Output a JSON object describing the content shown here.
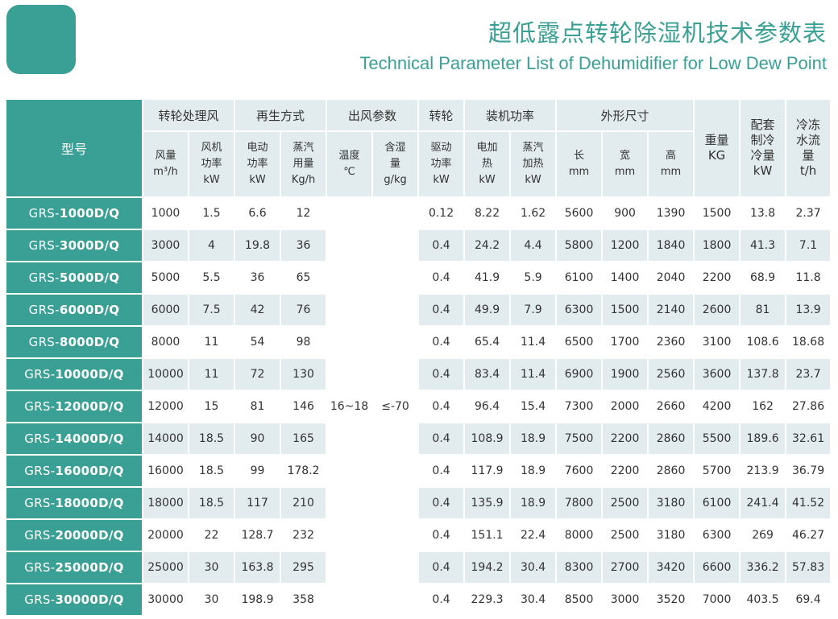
{
  "header": {
    "title_cn": "超低露点转轮除湿机技术参数表",
    "title_en": "Technical Parameter List of Dehumidifier for Low Dew Point"
  },
  "table": {
    "model_label": "型号",
    "groups": {
      "rotor_air": "转轮处理风",
      "regen": "再生方式",
      "outlet": "出风参数",
      "rotor": "转轮",
      "power": "装机功率",
      "dims": "外形尺寸",
      "weight_1": "重量",
      "weight_2": "KG",
      "cooling_1": "配套",
      "cooling_2": "制冷",
      "cooling_3": "冷量",
      "cooling_4": "kW",
      "chilled_1": "冷冻",
      "chilled_2": "水流",
      "chilled_3": "量",
      "chilled_4": "t/h"
    },
    "subheaders": {
      "air_volume": [
        "风量",
        "m³/h"
      ],
      "fan_power": [
        "风机",
        "功率",
        "kW"
      ],
      "electric_power": [
        "电动",
        "功率",
        "kW"
      ],
      "steam_usage": [
        "蒸汽",
        "用量",
        "Kg/h"
      ],
      "temperature": [
        "温度",
        "℃"
      ],
      "moisture": [
        "含湿",
        "量",
        "g/kg"
      ],
      "drive_power": [
        "驱动",
        "功率",
        "kW"
      ],
      "electric_heat": [
        "电加",
        "热",
        "kW"
      ],
      "steam_heat": [
        "蒸汽",
        "加热",
        "kW"
      ],
      "length": [
        "长",
        "mm"
      ],
      "width": [
        "宽",
        "mm"
      ],
      "height": [
        "高",
        "mm"
      ]
    },
    "merged_values": {
      "temperature": "16~18",
      "moisture": "≤-70"
    },
    "rows": [
      {
        "prefix": "GRS-",
        "model": "1000D/Q",
        "air": "1000",
        "fan": "1.5",
        "elec": "6.6",
        "steam": "12",
        "drive": "0.12",
        "eheat": "8.22",
        "sheat": "1.62",
        "len": "5600",
        "wid": "900",
        "hgt": "1390",
        "weight": "1500",
        "cool": "13.8",
        "water": "2.37"
      },
      {
        "prefix": "GRS-",
        "model": "3000D/Q",
        "air": "3000",
        "fan": "4",
        "elec": "19.8",
        "steam": "36",
        "drive": "0.4",
        "eheat": "24.2",
        "sheat": "4.4",
        "len": "5800",
        "wid": "1200",
        "hgt": "1840",
        "weight": "1800",
        "cool": "41.3",
        "water": "7.1"
      },
      {
        "prefix": "GRS-",
        "model": "5000D/Q",
        "air": "5000",
        "fan": "5.5",
        "elec": "36",
        "steam": "65",
        "drive": "0.4",
        "eheat": "41.9",
        "sheat": "5.9",
        "len": "6100",
        "wid": "1400",
        "hgt": "2040",
        "weight": "2200",
        "cool": "68.9",
        "water": "11.8"
      },
      {
        "prefix": "GRS-",
        "model": "6000D/Q",
        "air": "6000",
        "fan": "7.5",
        "elec": "42",
        "steam": "76",
        "drive": "0.4",
        "eheat": "49.9",
        "sheat": "7.9",
        "len": "6300",
        "wid": "1500",
        "hgt": "2140",
        "weight": "2600",
        "cool": "81",
        "water": "13.9"
      },
      {
        "prefix": "GRS-",
        "model": "8000D/Q",
        "air": "8000",
        "fan": "11",
        "elec": "54",
        "steam": "98",
        "drive": "0.4",
        "eheat": "65.4",
        "sheat": "11.4",
        "len": "6500",
        "wid": "1700",
        "hgt": "2360",
        "weight": "3100",
        "cool": "108.6",
        "water": "18.68"
      },
      {
        "prefix": "GRS-",
        "model": "10000D/Q",
        "air": "10000",
        "fan": "11",
        "elec": "72",
        "steam": "130",
        "drive": "0.4",
        "eheat": "83.4",
        "sheat": "11.4",
        "len": "6900",
        "wid": "1900",
        "hgt": "2560",
        "weight": "3600",
        "cool": "137.8",
        "water": "23.7"
      },
      {
        "prefix": "GRS-",
        "model": "12000D/Q",
        "air": "12000",
        "fan": "15",
        "elec": "81",
        "steam": "146",
        "drive": "0.4",
        "eheat": "96.4",
        "sheat": "15.4",
        "len": "7300",
        "wid": "2000",
        "hgt": "2660",
        "weight": "4200",
        "cool": "162",
        "water": "27.86"
      },
      {
        "prefix": "GRS-",
        "model": "14000D/Q",
        "air": "14000",
        "fan": "18.5",
        "elec": "90",
        "steam": "165",
        "drive": "0.4",
        "eheat": "108.9",
        "sheat": "18.9",
        "len": "7500",
        "wid": "2200",
        "hgt": "2860",
        "weight": "5500",
        "cool": "189.6",
        "water": "32.61"
      },
      {
        "prefix": "GRS-",
        "model": "16000D/Q",
        "air": "16000",
        "fan": "18.5",
        "elec": "99",
        "steam": "178.2",
        "drive": "0.4",
        "eheat": "117.9",
        "sheat": "18.9",
        "len": "7600",
        "wid": "2200",
        "hgt": "2860",
        "weight": "5700",
        "cool": "213.9",
        "water": "36.79"
      },
      {
        "prefix": "GRS-",
        "model": "18000D/Q",
        "air": "18000",
        "fan": "18.5",
        "elec": "117",
        "steam": "210",
        "drive": "0.4",
        "eheat": "135.9",
        "sheat": "18.9",
        "len": "7800",
        "wid": "2500",
        "hgt": "3180",
        "weight": "6100",
        "cool": "241.4",
        "water": "41.52"
      },
      {
        "prefix": "GRS-",
        "model": "20000D/Q",
        "air": "20000",
        "fan": "22",
        "elec": "128.7",
        "steam": "232",
        "drive": "0.4",
        "eheat": "151.1",
        "sheat": "22.4",
        "len": "8000",
        "wid": "2500",
        "hgt": "3180",
        "weight": "6300",
        "cool": "269",
        "water": "46.27"
      },
      {
        "prefix": "GRS-",
        "model": "25000D/Q",
        "air": "25000",
        "fan": "30",
        "elec": "163.8",
        "steam": "295",
        "drive": "0.4",
        "eheat": "194.2",
        "sheat": "30.4",
        "len": "8300",
        "wid": "2700",
        "hgt": "3420",
        "weight": "6600",
        "cool": "336.2",
        "water": "57.83"
      },
      {
        "prefix": "GRS-",
        "model": "30000D/Q",
        "air": "30000",
        "fan": "30",
        "elec": "198.9",
        "steam": "358",
        "drive": "0.4",
        "eheat": "229.3",
        "sheat": "30.4",
        "len": "8500",
        "wid": "3000",
        "hgt": "3520",
        "weight": "7000",
        "cool": "403.5",
        "water": "69.4"
      }
    ]
  },
  "colors": {
    "accent": "#3a9f95",
    "shade": "#e2ebed",
    "text": "#333333"
  }
}
